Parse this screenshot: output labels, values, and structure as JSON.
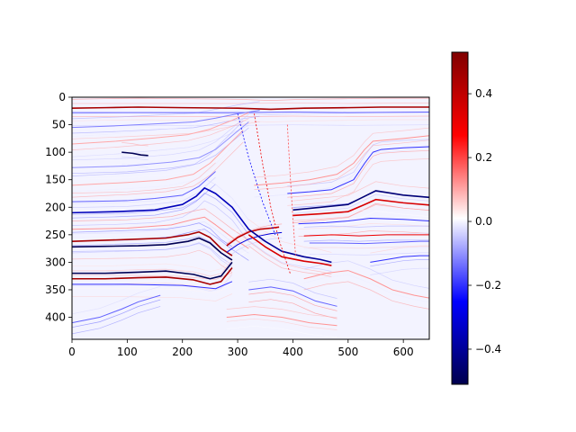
{
  "chart_data": {
    "type": "heatmap",
    "title": "",
    "xlabel": "",
    "ylabel": "",
    "xlim": [
      0,
      647
    ],
    "ylim": [
      440,
      0
    ],
    "x_ticks": [
      0,
      100,
      200,
      300,
      400,
      500,
      600
    ],
    "y_ticks": [
      0,
      50,
      100,
      150,
      200,
      250,
      300,
      350,
      400
    ],
    "colormap": "seismic",
    "colorbar": {
      "min": -0.51,
      "max": 0.53,
      "ticks": [
        -0.4,
        -0.2,
        0.0,
        0.2,
        0.4
      ],
      "tick_labels": [
        "−0.4",
        "−0.2",
        "0.0",
        "0.2",
        "0.4"
      ]
    },
    "reflectors": [
      {
        "points": [
          [
            0,
            20
          ],
          [
            60,
            19
          ],
          [
            120,
            18
          ],
          [
            200,
            19
          ],
          [
            300,
            20
          ],
          [
            360,
            22
          ],
          [
            420,
            20
          ],
          [
            500,
            19
          ],
          [
            560,
            18
          ],
          [
            647,
            18
          ]
        ],
        "amp": 0.45
      },
      {
        "points": [
          [
            0,
            28
          ],
          [
            100,
            28
          ],
          [
            200,
            28
          ],
          [
            300,
            28
          ],
          [
            400,
            27
          ],
          [
            500,
            28
          ],
          [
            647,
            27
          ]
        ],
        "amp": -0.15
      },
      {
        "points": [
          [
            0,
            55
          ],
          [
            80,
            52
          ],
          [
            160,
            48
          ],
          [
            220,
            45
          ],
          [
            260,
            38
          ],
          [
            300,
            30
          ],
          [
            340,
            24
          ]
        ],
        "amp": -0.12
      },
      {
        "points": [
          [
            0,
            85
          ],
          [
            80,
            80
          ],
          [
            150,
            74
          ],
          [
            210,
            68
          ],
          [
            250,
            58
          ],
          [
            290,
            42
          ],
          [
            320,
            28
          ]
        ],
        "amp": 0.1
      },
      {
        "points": [
          [
            90,
            100
          ],
          [
            110,
            102
          ],
          [
            125,
            105
          ],
          [
            138,
            106
          ]
        ],
        "amp": -0.5
      },
      {
        "points": [
          [
            0,
            128
          ],
          [
            100,
            125
          ],
          [
            180,
            118
          ],
          [
            230,
            110
          ],
          [
            260,
            95
          ],
          [
            290,
            70
          ],
          [
            320,
            45
          ]
        ],
        "amp": -0.1
      },
      {
        "points": [
          [
            0,
            160
          ],
          [
            100,
            155
          ],
          [
            170,
            150
          ],
          [
            220,
            140
          ],
          [
            250,
            120
          ],
          [
            280,
            90
          ],
          [
            310,
            60
          ]
        ],
        "amp": 0.1
      },
      {
        "points": [
          [
            0,
            190
          ],
          [
            100,
            188
          ],
          [
            150,
            184
          ],
          [
            200,
            178
          ],
          [
            230,
            162
          ],
          [
            260,
            135
          ]
        ],
        "amp": -0.15
      },
      {
        "points": [
          [
            0,
            210
          ],
          [
            80,
            208
          ],
          [
            150,
            205
          ],
          [
            200,
            195
          ],
          [
            225,
            180
          ],
          [
            240,
            165
          ],
          [
            260,
            175
          ],
          [
            290,
            200
          ],
          [
            320,
            240
          ]
        ],
        "amp": -0.35
      },
      {
        "points": [
          [
            0,
            240
          ],
          [
            100,
            238
          ],
          [
            180,
            232
          ],
          [
            220,
            222
          ],
          [
            240,
            218
          ],
          [
            260,
            232
          ],
          [
            290,
            255
          ],
          [
            320,
            275
          ]
        ],
        "amp": 0.12
      },
      {
        "points": [
          [
            0,
            262
          ],
          [
            60,
            260
          ],
          [
            120,
            258
          ],
          [
            170,
            256
          ],
          [
            210,
            250
          ],
          [
            230,
            245
          ],
          [
            250,
            255
          ],
          [
            270,
            275
          ],
          [
            290,
            288
          ]
        ],
        "amp": 0.45
      },
      {
        "points": [
          [
            0,
            272
          ],
          [
            60,
            271
          ],
          [
            120,
            270
          ],
          [
            170,
            268
          ],
          [
            210,
            262
          ],
          [
            230,
            256
          ],
          [
            250,
            265
          ],
          [
            270,
            283
          ],
          [
            290,
            296
          ]
        ],
        "amp": -0.5
      },
      {
        "points": [
          [
            280,
            270
          ],
          [
            300,
            255
          ],
          [
            320,
            245
          ],
          [
            340,
            240
          ],
          [
            360,
            238
          ],
          [
            375,
            236
          ]
        ],
        "amp": 0.4
      },
      {
        "points": [
          [
            280,
            282
          ],
          [
            300,
            268
          ],
          [
            320,
            258
          ],
          [
            340,
            252
          ],
          [
            360,
            248
          ],
          [
            380,
            246
          ]
        ],
        "amp": -0.3
      },
      {
        "points": [
          [
            0,
            320
          ],
          [
            60,
            320
          ],
          [
            120,
            318
          ],
          [
            170,
            316
          ],
          [
            220,
            322
          ],
          [
            250,
            330
          ],
          [
            270,
            325
          ],
          [
            290,
            300
          ]
        ],
        "amp": -0.5
      },
      {
        "points": [
          [
            0,
            330
          ],
          [
            60,
            330
          ],
          [
            120,
            328
          ],
          [
            170,
            327
          ],
          [
            220,
            332
          ],
          [
            250,
            340
          ],
          [
            270,
            335
          ],
          [
            290,
            310
          ]
        ],
        "amp": 0.45
      },
      {
        "points": [
          [
            0,
            340
          ],
          [
            100,
            340
          ],
          [
            200,
            342
          ],
          [
            260,
            348
          ],
          [
            290,
            335
          ]
        ],
        "amp": -0.2
      },
      {
        "points": [
          [
            390,
            175
          ],
          [
            430,
            172
          ],
          [
            470,
            168
          ],
          [
            510,
            150
          ],
          [
            530,
            120
          ],
          [
            545,
            100
          ],
          [
            560,
            95
          ],
          [
            600,
            92
          ],
          [
            647,
            90
          ]
        ],
        "amp": -0.2
      },
      {
        "points": [
          [
            330,
            160
          ],
          [
            380,
            156
          ],
          [
            430,
            150
          ],
          [
            480,
            140
          ],
          [
            510,
            120
          ],
          [
            530,
            95
          ],
          [
            545,
            80
          ],
          [
            600,
            75
          ],
          [
            647,
            70
          ]
        ],
        "amp": 0.12
      },
      {
        "points": [
          [
            400,
            205
          ],
          [
            450,
            200
          ],
          [
            500,
            195
          ],
          [
            530,
            180
          ],
          [
            550,
            170
          ],
          [
            600,
            178
          ],
          [
            647,
            182
          ]
        ],
        "amp": -0.45
      },
      {
        "points": [
          [
            400,
            215
          ],
          [
            450,
            212
          ],
          [
            500,
            208
          ],
          [
            530,
            195
          ],
          [
            550,
            186
          ],
          [
            600,
            192
          ],
          [
            647,
            196
          ]
        ],
        "amp": 0.35
      },
      {
        "points": [
          [
            410,
            230
          ],
          [
            460,
            228
          ],
          [
            500,
            225
          ],
          [
            540,
            220
          ],
          [
            600,
            222
          ],
          [
            647,
            225
          ]
        ],
        "amp": -0.2
      },
      {
        "points": [
          [
            420,
            252
          ],
          [
            470,
            250
          ],
          [
            520,
            252
          ],
          [
            570,
            250
          ],
          [
            620,
            250
          ],
          [
            647,
            250
          ]
        ],
        "amp": 0.3
      },
      {
        "points": [
          [
            430,
            265
          ],
          [
            480,
            265
          ],
          [
            530,
            266
          ],
          [
            580,
            264
          ],
          [
            630,
            262
          ],
          [
            647,
            262
          ]
        ],
        "amp": -0.15
      },
      {
        "points": [
          [
            320,
            240
          ],
          [
            350,
            262
          ],
          [
            380,
            280
          ],
          [
            420,
            290
          ],
          [
            450,
            295
          ],
          [
            470,
            300
          ]
        ],
        "amp": -0.4
      },
      {
        "points": [
          [
            320,
            250
          ],
          [
            350,
            272
          ],
          [
            380,
            290
          ],
          [
            420,
            298
          ],
          [
            450,
            302
          ],
          [
            470,
            306
          ]
        ],
        "amp": 0.35
      },
      {
        "points": [
          [
            0,
            410
          ],
          [
            50,
            400
          ],
          [
            90,
            385
          ],
          [
            120,
            372
          ],
          [
            160,
            360
          ]
        ],
        "amp": -0.15
      },
      {
        "points": [
          [
            540,
            300
          ],
          [
            570,
            295
          ],
          [
            600,
            290
          ],
          [
            630,
            288
          ],
          [
            647,
            288
          ]
        ],
        "amp": -0.2
      },
      {
        "points": [
          [
            420,
            330
          ],
          [
            460,
            320
          ],
          [
            500,
            315
          ],
          [
            540,
            330
          ],
          [
            580,
            350
          ],
          [
            620,
            360
          ],
          [
            647,
            365
          ]
        ],
        "amp": 0.12
      },
      {
        "points": [
          [
            320,
            350
          ],
          [
            360,
            345
          ],
          [
            400,
            352
          ],
          [
            440,
            370
          ],
          [
            480,
            380
          ]
        ],
        "amp": -0.15
      },
      {
        "points": [
          [
            280,
            400
          ],
          [
            330,
            395
          ],
          [
            380,
            400
          ],
          [
            430,
            410
          ],
          [
            480,
            415
          ]
        ],
        "amp": 0.12
      }
    ],
    "faults": [
      {
        "points": [
          [
            330,
            30
          ],
          [
            345,
            120
          ],
          [
            360,
            200
          ],
          [
            375,
            260
          ],
          [
            395,
            320
          ]
        ],
        "amp": 0.3
      },
      {
        "points": [
          [
            300,
            30
          ],
          [
            320,
            110
          ],
          [
            345,
            190
          ],
          [
            368,
            250
          ]
        ],
        "amp": -0.25
      },
      {
        "points": [
          [
            390,
            50
          ],
          [
            395,
            140
          ],
          [
            400,
            220
          ],
          [
            405,
            290
          ]
        ],
        "amp": 0.2
      }
    ]
  }
}
